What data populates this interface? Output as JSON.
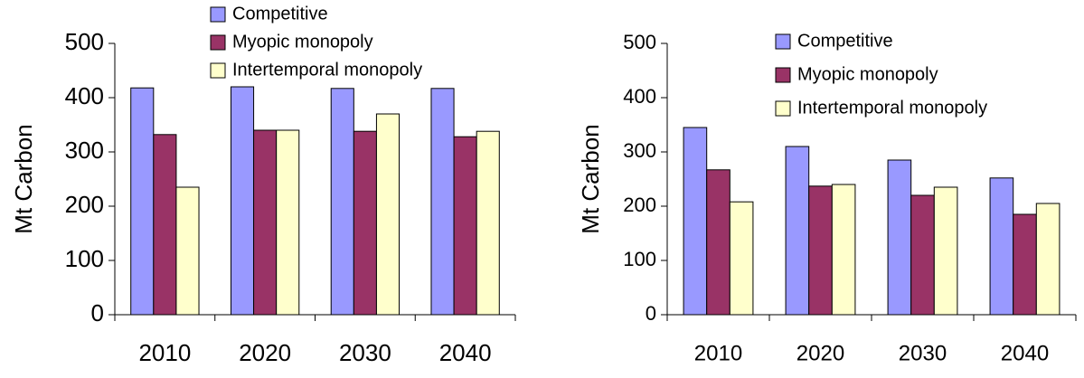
{
  "chart_data": [
    {
      "type": "bar",
      "y_label": "Mt Carbon",
      "categories": [
        "2010",
        "2020",
        "2030",
        "2040"
      ],
      "series": [
        {
          "name": "Competitive",
          "color": "#9999ff",
          "values": [
            418,
            420,
            417,
            417
          ]
        },
        {
          "name": "Myopic monopoly",
          "color": "#993366",
          "values": [
            332,
            340,
            338,
            328
          ]
        },
        {
          "name": "Intertemporal monopoly",
          "color": "#ffffcc",
          "values": [
            235,
            340,
            370,
            338
          ]
        }
      ],
      "ylim": [
        0,
        500
      ],
      "yticks": [
        0,
        100,
        200,
        300,
        400,
        500
      ]
    },
    {
      "type": "bar",
      "y_label": "Mt Carbon",
      "categories": [
        "2010",
        "2020",
        "2030",
        "2040"
      ],
      "series": [
        {
          "name": "Competitive",
          "color": "#9999ff",
          "values": [
            345,
            310,
            285,
            252
          ]
        },
        {
          "name": "Myopic monopoly",
          "color": "#993366",
          "values": [
            267,
            237,
            220,
            185
          ]
        },
        {
          "name": "Intertemporal monopoly",
          "color": "#ffffcc",
          "values": [
            208,
            240,
            235,
            205
          ]
        }
      ],
      "ylim": [
        0,
        500
      ],
      "yticks": [
        0,
        100,
        200,
        300,
        400,
        500
      ]
    }
  ]
}
